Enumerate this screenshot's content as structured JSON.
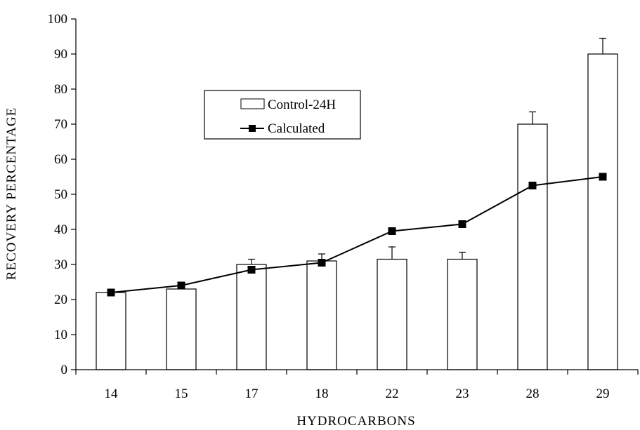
{
  "chart_data": {
    "type": "bar",
    "title": "",
    "xlabel": "HYDROCARBONS",
    "ylabel": "RECOVERY PERCENTAGE",
    "ylim": [
      0,
      100
    ],
    "yticks": [
      "0",
      "10",
      "20",
      "30",
      "40",
      "50",
      "60",
      "70",
      "80",
      "90",
      "100"
    ],
    "categories": [
      "14",
      "15",
      "17",
      "18",
      "22",
      "23",
      "28",
      "29"
    ],
    "series": [
      {
        "name": "Control-24H",
        "type": "bar",
        "values": [
          22,
          23,
          30,
          31,
          31.5,
          31.5,
          70,
          90
        ],
        "error": [
          0,
          0,
          1.5,
          2,
          3.5,
          2,
          3.5,
          4.5
        ],
        "color": "#ffffff",
        "stroke": "#000000"
      },
      {
        "name": "Calculated",
        "type": "line",
        "marker": "square",
        "values": [
          22,
          24,
          28.5,
          30.5,
          39.5,
          41.5,
          52.5,
          55
        ],
        "color": "#000000"
      }
    ],
    "legend": "upper-left-inside",
    "grid": false
  }
}
